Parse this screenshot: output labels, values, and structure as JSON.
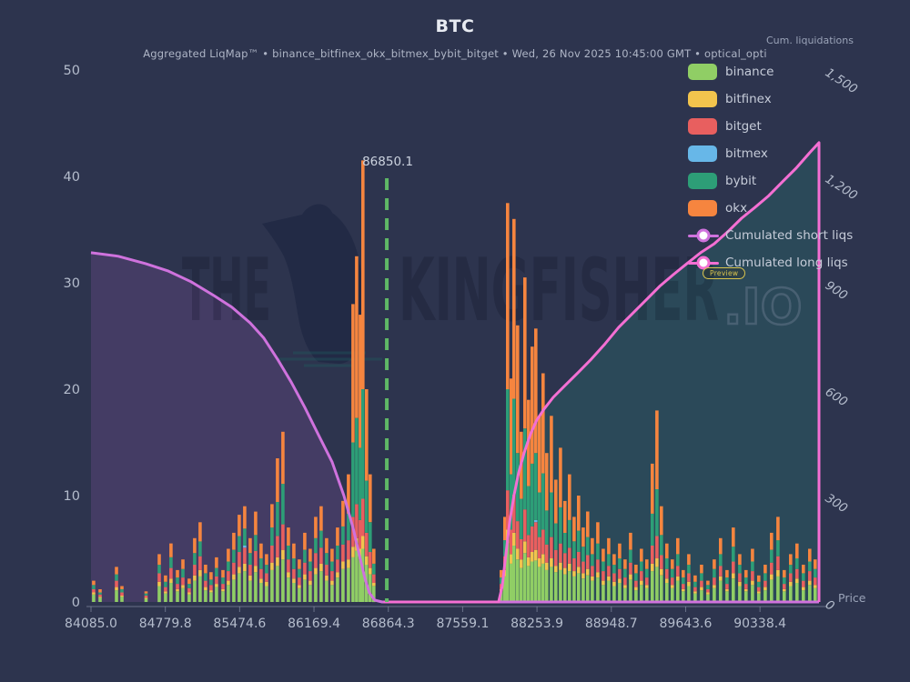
{
  "header": {
    "title": "BTC",
    "subtitle": "Aggregated LiqMap™  •  binance_bitfinex_okx_bitmex_bybit_bitget  •  Wed, 26 Nov 2025 10:45:00 GMT  •  optical_opti",
    "right_axis_title": "Cum. liquidations"
  },
  "watermark": {
    "word1": "THE",
    "word2": "KINGFISHER",
    "suffix": ".IO"
  },
  "legend": {
    "preview_badge": "Preview",
    "items": [
      {
        "label": "binance",
        "color": "#90ce65",
        "type": "box"
      },
      {
        "label": "bitfinex",
        "color": "#f2c44d",
        "type": "box"
      },
      {
        "label": "bitget",
        "color": "#e85f5f",
        "type": "box"
      },
      {
        "label": "bitmex",
        "color": "#67b7e8",
        "type": "box"
      },
      {
        "label": "bybit",
        "color": "#2d9e77",
        "type": "box"
      },
      {
        "label": "okx",
        "color": "#f6853f",
        "type": "box"
      },
      {
        "label": "Cumulated short liqs",
        "color": "#cf72dd",
        "type": "line"
      },
      {
        "label": "Cumulated long liqs",
        "color": "#f46fd3",
        "type": "line"
      }
    ]
  },
  "chart_data": {
    "type": "bar",
    "title": "BTC",
    "x_axis": {
      "title": "Price",
      "min": 84085,
      "max": 90890,
      "ticks": [
        "84085.0",
        "84779.8",
        "85474.6",
        "86169.4",
        "86864.3",
        "87559.1",
        "88253.9",
        "88948.7",
        "89643.6",
        "90338.4"
      ],
      "tick_values": [
        84085.0,
        84779.8,
        85474.6,
        86169.4,
        86864.3,
        87559.1,
        88253.9,
        88948.7,
        89643.6,
        90338.4
      ]
    },
    "y_left": {
      "min": 0,
      "max": 50,
      "ticks": [
        0,
        10,
        20,
        30,
        40,
        50
      ]
    },
    "y_right": {
      "title": "Cum. liquidations",
      "min": 0,
      "max": 1500,
      "ticks": [
        {
          "v": 0,
          "label": "0"
        },
        {
          "v": 300,
          "label": "300"
        },
        {
          "v": 600,
          "label": "600"
        },
        {
          "v": 900,
          "label": "900"
        },
        {
          "v": 1200,
          "label": "1,200"
        },
        {
          "v": 1500,
          "label": "1,500"
        }
      ]
    },
    "annotation_line": {
      "x": 86850.1,
      "label": "86850.1",
      "color": "#5fb866"
    },
    "exchanges": [
      "binance",
      "bitfinex",
      "bitget",
      "bitmex",
      "bybit",
      "okx"
    ],
    "exchange_colors": [
      "#90ce65",
      "#f2c44d",
      "#e85f5f",
      "#67b7e8",
      "#2d9e77",
      "#f6853f"
    ],
    "bars": [
      [
        84110,
        0.7,
        0.2,
        0.3,
        0,
        0.4,
        0.4
      ],
      [
        84170,
        0.4,
        0.1,
        0.2,
        0,
        0.2,
        0.3
      ],
      [
        84323,
        1.1,
        0.3,
        0.6,
        0,
        0.6,
        0.7
      ],
      [
        84374,
        0.5,
        0.1,
        0.3,
        0,
        0.3,
        0.3
      ],
      [
        84600,
        0.3,
        0.1,
        0.2,
        0,
        0.2,
        0.2
      ],
      [
        84723,
        1.5,
        0.4,
        0.8,
        0,
        0.8,
        1.0
      ],
      [
        84782,
        0.8,
        0.2,
        0.4,
        0,
        0.5,
        0.6
      ],
      [
        84833,
        1.8,
        0.4,
        1.0,
        0,
        1.0,
        1.3
      ],
      [
        84893,
        1.0,
        0.2,
        0.5,
        0,
        0.6,
        0.7
      ],
      [
        84944,
        1.3,
        0.3,
        0.7,
        0,
        0.8,
        0.9
      ],
      [
        85003,
        0.7,
        0.2,
        0.4,
        0,
        0.4,
        0.5
      ],
      [
        85054,
        2.0,
        0.5,
        1.0,
        0,
        1.1,
        1.4
      ],
      [
        85105,
        2.4,
        0.6,
        1.3,
        0,
        1.4,
        1.8
      ],
      [
        85156,
        1.1,
        0.3,
        0.6,
        0,
        0.7,
        0.8
      ],
      [
        85207,
        0.9,
        0.2,
        0.5,
        0,
        0.5,
        0.7
      ],
      [
        85258,
        1.4,
        0.3,
        0.7,
        0,
        0.8,
        1.0
      ],
      [
        85318,
        1.0,
        0.2,
        0.5,
        0,
        0.6,
        0.7
      ],
      [
        85369,
        1.6,
        0.4,
        0.9,
        0,
        0.9,
        1.2
      ],
      [
        85420,
        2.1,
        0.5,
        1.1,
        0,
        1.2,
        1.6
      ],
      [
        85471,
        2.7,
        0.6,
        1.4,
        0,
        1.5,
        2.0
      ],
      [
        85522,
        2.9,
        0.7,
        1.5,
        0.2,
        1.6,
        2.1
      ],
      [
        85573,
        2.0,
        0.5,
        1.0,
        0,
        1.1,
        1.4
      ],
      [
        85624,
        2.8,
        0.6,
        1.4,
        0,
        1.5,
        2.2
      ],
      [
        85675,
        1.8,
        0.4,
        0.9,
        0,
        1.0,
        1.4
      ],
      [
        85726,
        1.5,
        0.4,
        0.8,
        0,
        0.8,
        1.0
      ],
      [
        85777,
        3.0,
        0.7,
        1.6,
        0,
        1.7,
        2.2
      ],
      [
        85828,
        3.4,
        0.8,
        2.0,
        0,
        3.2,
        4.1
      ],
      [
        85879,
        4.0,
        0.9,
        2.4,
        0,
        3.8,
        4.9
      ],
      [
        85930,
        2.3,
        0.5,
        1.2,
        0,
        1.3,
        1.7
      ],
      [
        85981,
        1.8,
        0.4,
        0.9,
        0,
        1.0,
        1.4
      ],
      [
        86032,
        1.3,
        0.3,
        0.7,
        0,
        0.8,
        0.9
      ],
      [
        86083,
        2.1,
        0.5,
        1.1,
        0,
        1.2,
        1.6
      ],
      [
        86134,
        1.6,
        0.4,
        0.9,
        0,
        0.9,
        1.2
      ],
      [
        86185,
        2.6,
        0.6,
        1.4,
        0,
        1.4,
        2.0
      ],
      [
        86236,
        2.9,
        0.7,
        1.5,
        0,
        1.6,
        2.3
      ],
      [
        86287,
        2.0,
        0.5,
        1.0,
        0,
        1.1,
        1.4
      ],
      [
        86338,
        1.6,
        0.4,
        0.9,
        0,
        0.9,
        1.2
      ],
      [
        86389,
        2.3,
        0.5,
        1.2,
        0,
        1.3,
        1.7
      ],
      [
        86440,
        3.1,
        0.7,
        1.6,
        0,
        1.7,
        2.4
      ],
      [
        86491,
        3.2,
        0.8,
        1.8,
        0,
        2.5,
        3.7
      ],
      [
        86534,
        4.2,
        1.0,
        2.8,
        0,
        7.0,
        13.0
      ],
      [
        86568,
        4.8,
        1.2,
        3.2,
        0,
        8.1,
        15.2
      ],
      [
        86602,
        4.0,
        1.0,
        2.7,
        0,
        6.8,
        12.5
      ],
      [
        86627,
        5.0,
        1.2,
        3.5,
        0,
        10.3,
        21.5
      ],
      [
        86661,
        3.5,
        0.8,
        2.2,
        0,
        4.9,
        8.6
      ],
      [
        86695,
        2.6,
        0.6,
        1.5,
        0,
        2.8,
        4.5
      ],
      [
        86729,
        1.5,
        0.3,
        0.8,
        0,
        1.0,
        1.4
      ],
      [
        87920,
        1.0,
        0.2,
        0.5,
        0,
        0.6,
        0.7
      ],
      [
        87954,
        2.4,
        0.6,
        1.3,
        0,
        1.5,
        2.2
      ],
      [
        87979,
        5.5,
        1.3,
        3.7,
        0,
        9.5,
        17.5
      ],
      [
        88013,
        3.6,
        0.9,
        2.3,
        0,
        5.2,
        9.0
      ],
      [
        88039,
        5.3,
        1.2,
        3.6,
        0,
        9.0,
        16.9
      ],
      [
        88073,
        4.0,
        1.0,
        2.6,
        0,
        6.4,
        12.0
      ],
      [
        88107,
        3.2,
        0.8,
        1.9,
        0,
        3.8,
        6.3
      ],
      [
        88141,
        4.6,
        1.1,
        3.0,
        0,
        7.6,
        14.2
      ],
      [
        88175,
        3.4,
        0.8,
        2.1,
        0,
        4.6,
        8.1
      ],
      [
        88209,
        3.8,
        0.9,
        2.4,
        0,
        5.9,
        11.0
      ],
      [
        88243,
        3.9,
        1.0,
        2.6,
        0.2,
        6.3,
        11.7
      ],
      [
        88277,
        3.3,
        0.8,
        2.0,
        0,
        4.2,
        7.2
      ],
      [
        88311,
        3.6,
        0.9,
        2.3,
        0,
        5.3,
        9.4
      ],
      [
        88345,
        3.0,
        0.7,
        1.7,
        0,
        3.2,
        5.4
      ],
      [
        88388,
        3.3,
        0.8,
        2.0,
        0,
        4.2,
        7.2
      ],
      [
        88430,
        2.8,
        0.6,
        1.5,
        0,
        2.5,
        4.1
      ],
      [
        88473,
        3.0,
        0.7,
        1.8,
        0,
        3.4,
        5.6
      ],
      [
        88515,
        2.6,
        0.6,
        1.4,
        0,
        1.9,
        3.0
      ],
      [
        88558,
        2.9,
        0.7,
        1.5,
        0,
        2.6,
        4.3
      ],
      [
        88601,
        2.4,
        0.5,
        1.2,
        0,
        1.6,
        2.3
      ],
      [
        88643,
        2.7,
        0.6,
        1.4,
        0,
        2.0,
        3.3
      ],
      [
        88686,
        2.2,
        0.5,
        1.1,
        0,
        1.4,
        1.8
      ],
      [
        88728,
        2.5,
        0.6,
        1.3,
        0,
        1.7,
        2.4
      ],
      [
        88771,
        2.0,
        0.4,
        1.0,
        0,
        1.1,
        1.5
      ],
      [
        88822,
        2.3,
        0.5,
        1.2,
        0,
        1.5,
        2.0
      ],
      [
        88873,
        1.6,
        0.4,
        0.9,
        0,
        0.9,
        1.2
      ],
      [
        88924,
        2.0,
        0.4,
        1.0,
        0,
        1.1,
        1.5
      ],
      [
        88975,
        1.5,
        0.4,
        0.8,
        0,
        0.8,
        1.0
      ],
      [
        89026,
        1.8,
        0.4,
        0.9,
        0,
        1.0,
        1.4
      ],
      [
        89077,
        1.3,
        0.3,
        0.7,
        0,
        0.8,
        0.9
      ],
      [
        89128,
        2.1,
        0.5,
        1.1,
        0,
        1.2,
        1.6
      ],
      [
        89179,
        1.1,
        0.3,
        0.6,
        0,
        0.7,
        0.8
      ],
      [
        89230,
        1.6,
        0.4,
        0.9,
        0,
        0.9,
        1.2
      ],
      [
        89281,
        1.3,
        0.3,
        0.7,
        0,
        0.8,
        0.9
      ],
      [
        89332,
        2.9,
        0.7,
        1.7,
        0,
        3.0,
        4.7
      ],
      [
        89375,
        3.3,
        0.8,
        2.1,
        0,
        4.4,
        7.4
      ],
      [
        89417,
        2.5,
        0.6,
        1.3,
        0,
        1.9,
        2.7
      ],
      [
        89468,
        1.8,
        0.4,
        0.9,
        0,
        1.0,
        1.4
      ],
      [
        89519,
        1.3,
        0.3,
        0.7,
        0,
        0.8,
        0.9
      ],
      [
        89570,
        2.0,
        0.4,
        1.0,
        0,
        1.1,
        1.5
      ],
      [
        89621,
        1.0,
        0.2,
        0.5,
        0,
        0.6,
        0.7
      ],
      [
        89673,
        1.5,
        0.4,
        0.8,
        0,
        0.8,
        1.0
      ],
      [
        89732,
        0.8,
        0.2,
        0.4,
        0,
        0.5,
        0.6
      ],
      [
        89792,
        1.1,
        0.3,
        0.6,
        0,
        0.7,
        0.8
      ],
      [
        89851,
        0.7,
        0.2,
        0.3,
        0,
        0.4,
        0.4
      ],
      [
        89911,
        1.3,
        0.3,
        0.7,
        0,
        0.8,
        0.9
      ],
      [
        89970,
        2.0,
        0.4,
        1.0,
        0,
        1.1,
        1.5
      ],
      [
        90030,
        1.0,
        0.2,
        0.5,
        0,
        0.6,
        0.7
      ],
      [
        90089,
        2.2,
        0.5,
        1.1,
        0,
        1.4,
        1.8
      ],
      [
        90149,
        1.5,
        0.4,
        0.8,
        0,
        0.8,
        1.0
      ],
      [
        90208,
        1.0,
        0.2,
        0.5,
        0,
        0.6,
        0.7
      ],
      [
        90268,
        1.6,
        0.4,
        0.9,
        0,
        0.9,
        1.2
      ],
      [
        90327,
        0.8,
        0.2,
        0.4,
        0,
        0.5,
        0.6
      ],
      [
        90387,
        1.1,
        0.3,
        0.6,
        0,
        0.7,
        0.8
      ],
      [
        90446,
        2.1,
        0.5,
        1.1,
        0,
        1.2,
        1.6
      ],
      [
        90506,
        2.4,
        0.6,
        1.3,
        0,
        1.5,
        2.2
      ],
      [
        90565,
        1.0,
        0.2,
        0.5,
        0,
        0.6,
        0.7
      ],
      [
        90625,
        1.5,
        0.4,
        0.8,
        0,
        0.8,
        1.0
      ],
      [
        90684,
        1.8,
        0.4,
        0.9,
        0,
        1.0,
        1.4
      ],
      [
        90744,
        1.1,
        0.3,
        0.6,
        0,
        0.7,
        0.8
      ],
      [
        90803,
        1.6,
        0.4,
        0.9,
        0,
        0.9,
        1.2
      ],
      [
        90854,
        1.3,
        0.3,
        0.7,
        0,
        0.8,
        0.9
      ]
    ],
    "cumulated_short_liqs": {
      "name": "Cumulated short liqs",
      "color": "#cf72dd",
      "fill": "rgba(190,105,215,0.16)",
      "points": [
        [
          84085,
          985
        ],
        [
          84340,
          975
        ],
        [
          84595,
          954
        ],
        [
          84808,
          933
        ],
        [
          85020,
          903
        ],
        [
          85233,
          864
        ],
        [
          85403,
          831
        ],
        [
          85573,
          787
        ],
        [
          85700,
          744
        ],
        [
          85828,
          685
        ],
        [
          85956,
          620
        ],
        [
          86083,
          549
        ],
        [
          86210,
          472
        ],
        [
          86338,
          395
        ],
        [
          86449,
          300
        ],
        [
          86534,
          210
        ],
        [
          86593,
          133
        ],
        [
          86644,
          69
        ],
        [
          86687,
          26
        ],
        [
          86738,
          5
        ],
        [
          86806,
          0
        ],
        [
          90890,
          0
        ]
      ]
    },
    "cumulated_long_liqs": {
      "name": "Cumulated long liqs",
      "color": "#f46fd3",
      "fill": "rgba(38,150,133,0.22)",
      "points": [
        [
          86820,
          0
        ],
        [
          87895,
          0
        ],
        [
          87929,
          44
        ],
        [
          87963,
          133
        ],
        [
          87997,
          223
        ],
        [
          88039,
          300
        ],
        [
          88082,
          364
        ],
        [
          88133,
          420
        ],
        [
          88192,
          472
        ],
        [
          88252,
          513
        ],
        [
          88320,
          544
        ],
        [
          88405,
          577
        ],
        [
          88507,
          608
        ],
        [
          88635,
          646
        ],
        [
          88762,
          685
        ],
        [
          88890,
          728
        ],
        [
          89017,
          774
        ],
        [
          89145,
          813
        ],
        [
          89272,
          851
        ],
        [
          89400,
          890
        ],
        [
          89528,
          923
        ],
        [
          89655,
          954
        ],
        [
          89783,
          985
        ],
        [
          89910,
          1010
        ],
        [
          90038,
          1044
        ],
        [
          90166,
          1082
        ],
        [
          90293,
          1113
        ],
        [
          90421,
          1146
        ],
        [
          90548,
          1185
        ],
        [
          90676,
          1223
        ],
        [
          90803,
          1267
        ],
        [
          90890,
          1295
        ],
        [
          90890,
          0
        ]
      ]
    }
  }
}
